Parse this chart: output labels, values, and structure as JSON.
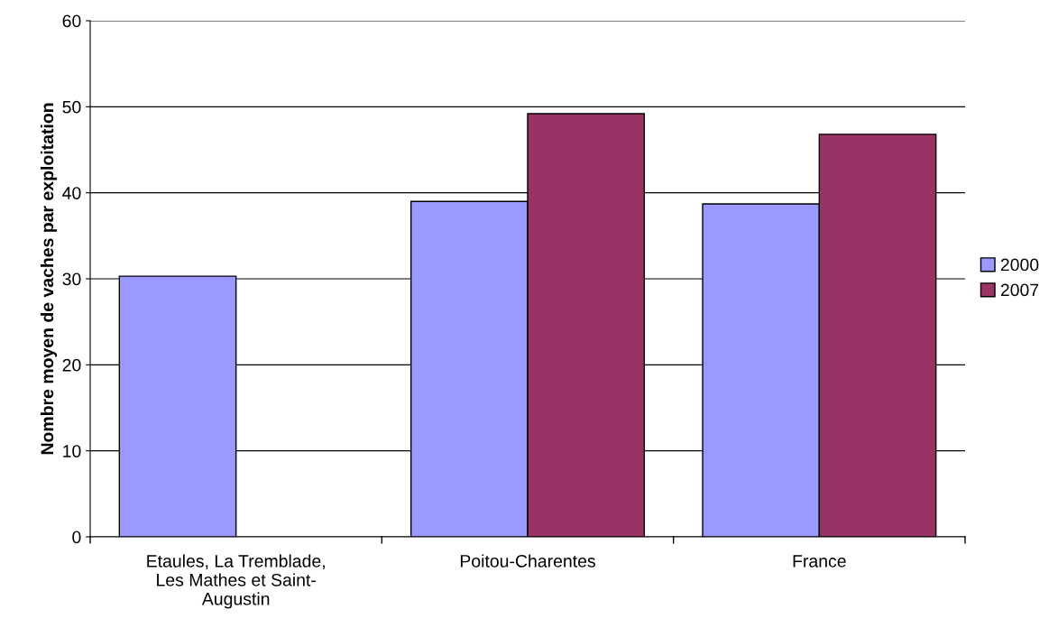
{
  "chart_data": {
    "type": "bar",
    "ylabel": "Nombre moyen de vaches par exploitation",
    "categories": [
      "Etaules, La Tremblade,\nLes Mathes et Saint-\nAugustin",
      "Poitou-Charentes",
      "France"
    ],
    "series": [
      {
        "name": "2000",
        "color": "#9999ff",
        "values": [
          30.3,
          39.0,
          38.7
        ]
      },
      {
        "name": "2007",
        "color": "#993366",
        "values": [
          null,
          49.2,
          46.8
        ]
      }
    ],
    "ylim": [
      0,
      60
    ],
    "yticks": [
      0,
      10,
      20,
      30,
      40,
      50,
      60
    ],
    "grid": "y",
    "legend": "right"
  }
}
